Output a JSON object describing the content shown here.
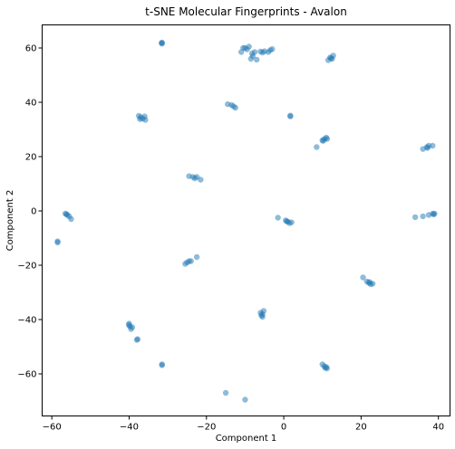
{
  "chart_data": {
    "type": "scatter",
    "title": "t-SNE Molecular Fingerprints - Avalon",
    "xlabel": "Component 1",
    "ylabel": "Component 2",
    "xlim": [
      -62.5,
      43.0
    ],
    "ylim": [
      -75.5,
      68.5
    ],
    "xticks": [
      -60,
      -40,
      -20,
      0,
      20,
      40
    ],
    "yticks": [
      -60,
      -40,
      -20,
      0,
      20,
      40,
      60
    ],
    "grid": false,
    "legend": "none",
    "point_color": "#1f77b4",
    "point_opacity": 0.5,
    "series": [
      {
        "points": [
          [
            -31.5,
            62
          ],
          [
            -31.5,
            61.6
          ],
          [
            -31.6,
            61.8
          ],
          [
            -11,
            58.5
          ],
          [
            -10,
            60
          ],
          [
            -9.5,
            59.5
          ],
          [
            -9,
            60.5
          ],
          [
            -8.5,
            56
          ],
          [
            -8,
            57
          ],
          [
            -7.5,
            58.5
          ],
          [
            -7,
            55.7
          ],
          [
            -6,
            58.7
          ],
          [
            -5.5,
            58.3
          ],
          [
            -5,
            58.8
          ],
          [
            -4,
            58.5
          ],
          [
            -3.5,
            59.2
          ],
          [
            -3,
            59.6
          ],
          [
            -10.5,
            60
          ],
          [
            -8.2,
            58
          ],
          [
            11.5,
            55.5
          ],
          [
            12,
            56.5
          ],
          [
            12.5,
            56
          ],
          [
            12.8,
            57.2
          ],
          [
            12.2,
            56.2
          ],
          [
            -37.5,
            35
          ],
          [
            -37,
            34.5
          ],
          [
            -36.5,
            34
          ],
          [
            -36,
            34.8
          ],
          [
            -35.8,
            33.5
          ],
          [
            -37.2,
            33.8
          ],
          [
            -14.5,
            39.3
          ],
          [
            -13.5,
            39
          ],
          [
            -13,
            38.5
          ],
          [
            -12.5,
            38
          ],
          [
            1.7,
            35.1
          ],
          [
            1.7,
            34.8
          ],
          [
            10,
            26
          ],
          [
            10.5,
            26.5
          ],
          [
            11,
            27
          ],
          [
            11.2,
            26.5
          ],
          [
            8.5,
            23.5
          ],
          [
            10.2,
            25.8
          ],
          [
            36,
            22.8
          ],
          [
            37,
            23.5
          ],
          [
            37.5,
            24
          ],
          [
            38.5,
            24
          ],
          [
            37.2,
            23.2
          ],
          [
            -24.5,
            12.8
          ],
          [
            -23.5,
            12.5
          ],
          [
            -23,
            12
          ],
          [
            -22.5,
            12.5
          ],
          [
            -21.5,
            11.5
          ],
          [
            -56.5,
            -1
          ],
          [
            -56,
            -1.5
          ],
          [
            -55.5,
            -2
          ],
          [
            -55,
            -3
          ],
          [
            -56.2,
            -1.2
          ],
          [
            -58.5,
            -11.2
          ],
          [
            -58.5,
            -11.6
          ],
          [
            -1.5,
            -2.5
          ],
          [
            0.5,
            -3.5
          ],
          [
            1,
            -4
          ],
          [
            1.5,
            -4.5
          ],
          [
            2,
            -4.2
          ],
          [
            0.8,
            -3.8
          ],
          [
            34,
            -2.3
          ],
          [
            36,
            -2
          ],
          [
            37.5,
            -1.5
          ],
          [
            38.5,
            -1
          ],
          [
            39,
            -1
          ],
          [
            38.8,
            -1.3
          ],
          [
            -25.5,
            -19.5
          ],
          [
            -25,
            -19
          ],
          [
            -24.5,
            -18.5
          ],
          [
            -24,
            -18.5
          ],
          [
            -22.5,
            -17
          ],
          [
            20.5,
            -24.5
          ],
          [
            21.5,
            -26
          ],
          [
            22,
            -26.5
          ],
          [
            22.5,
            -27
          ],
          [
            23,
            -26.8
          ],
          [
            22.2,
            -26.2
          ],
          [
            -40,
            -41.5
          ],
          [
            -39.8,
            -42.5
          ],
          [
            -39.5,
            -43.5
          ],
          [
            -39.2,
            -42.8
          ],
          [
            -40.1,
            -42
          ],
          [
            -6,
            -37.5
          ],
          [
            -5.5,
            -38
          ],
          [
            -5.5,
            -39
          ],
          [
            -5.2,
            -36.8
          ],
          [
            -5.8,
            -38.5
          ],
          [
            -38,
            -47.5
          ],
          [
            -37.8,
            -47.2
          ],
          [
            -31.5,
            -56.5
          ],
          [
            -31.5,
            -56.8
          ],
          [
            10,
            -56.5
          ],
          [
            10.5,
            -57.2
          ],
          [
            11,
            -57.5
          ],
          [
            11.2,
            -58
          ],
          [
            10.7,
            -57.8
          ],
          [
            -15,
            -67
          ],
          [
            -10,
            -69.5
          ]
        ]
      }
    ]
  }
}
